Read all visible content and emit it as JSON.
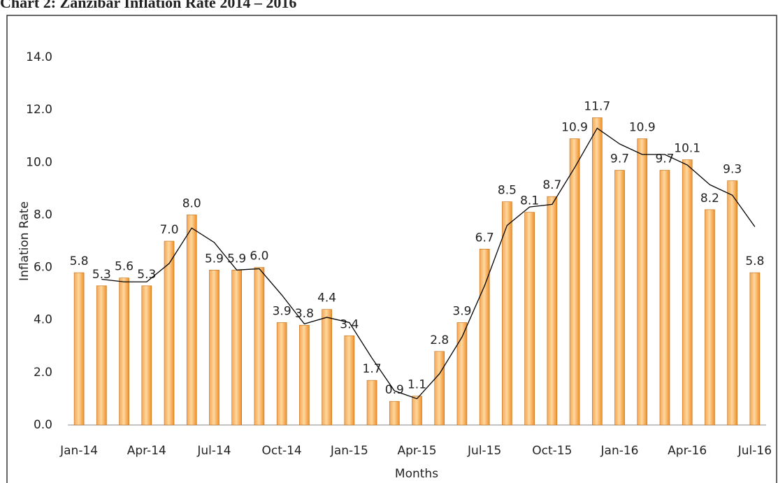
{
  "chart_data": {
    "type": "bar",
    "title": "Chart 2: Zanzibar Inflation Rate 2014 – 2016",
    "x_label": "Months",
    "y_label": "Inflation Rate",
    "categories": [
      "Jan-14",
      null,
      null,
      "Apr-14",
      null,
      null,
      "Jul-14",
      null,
      null,
      "Oct-14",
      null,
      null,
      "Jan-15",
      null,
      null,
      "Apr-15",
      null,
      null,
      "Jul-15",
      null,
      null,
      "Oct-15",
      null,
      null,
      "Jan-16",
      null,
      null,
      "Apr-16",
      null,
      null,
      "Jul-16"
    ],
    "series": [
      {
        "color": "#f0902a",
        "values": [
          5.8,
          5.3,
          5.6,
          5.3,
          7.0,
          8.0,
          5.9,
          5.9,
          6.0,
          3.9,
          3.8,
          4.4,
          3.4,
          1.7,
          0.9,
          1.1,
          2.8,
          3.9,
          6.7,
          8.5,
          8.1,
          8.7,
          10.9,
          11.7,
          9.7,
          10.9,
          9.7,
          10.1,
          8.2,
          9.3,
          5.8
        ],
        "value_labels": [
          "5.8",
          "5.3",
          "5.6",
          "5.3",
          "7.0",
          "8.0",
          "5.9",
          "5.9",
          "6.0",
          "3.9",
          "3.8",
          "4.4",
          "3.4",
          "1.7",
          "0.9",
          "1.1",
          "2.8",
          "3.9",
          "6.7",
          "8.5",
          "8.1",
          "8.7",
          "10.9",
          "11.7",
          "9.7",
          "10.9",
          "9.7",
          "10.1",
          "8.2",
          "9.3",
          "5.8"
        ]
      },
      {
        "type": "line",
        "color": "#000000",
        "values": [
          null,
          5.55,
          5.45,
          5.45,
          6.15,
          7.5,
          6.95,
          5.9,
          5.95,
          4.95,
          3.85,
          4.1,
          3.9,
          2.55,
          1.3,
          1.0,
          1.95,
          3.35,
          5.3,
          7.6,
          8.3,
          8.4,
          9.8,
          11.3,
          10.7,
          10.3,
          10.3,
          9.9,
          9.15,
          8.75,
          7.55
        ]
      }
    ],
    "ylim": [
      0,
      14
    ],
    "yticks": [
      {
        "value": 0,
        "label": "0.0"
      },
      {
        "value": 2,
        "label": "2.0"
      },
      {
        "value": 4,
        "label": "4.0"
      },
      {
        "value": 6,
        "label": "6.0"
      },
      {
        "value": 8,
        "label": "8.0"
      },
      {
        "value": 10,
        "label": "10.0"
      },
      {
        "value": 12,
        "label": "12.0"
      },
      {
        "value": 14,
        "label": "14.0"
      }
    ],
    "grid": false
  }
}
